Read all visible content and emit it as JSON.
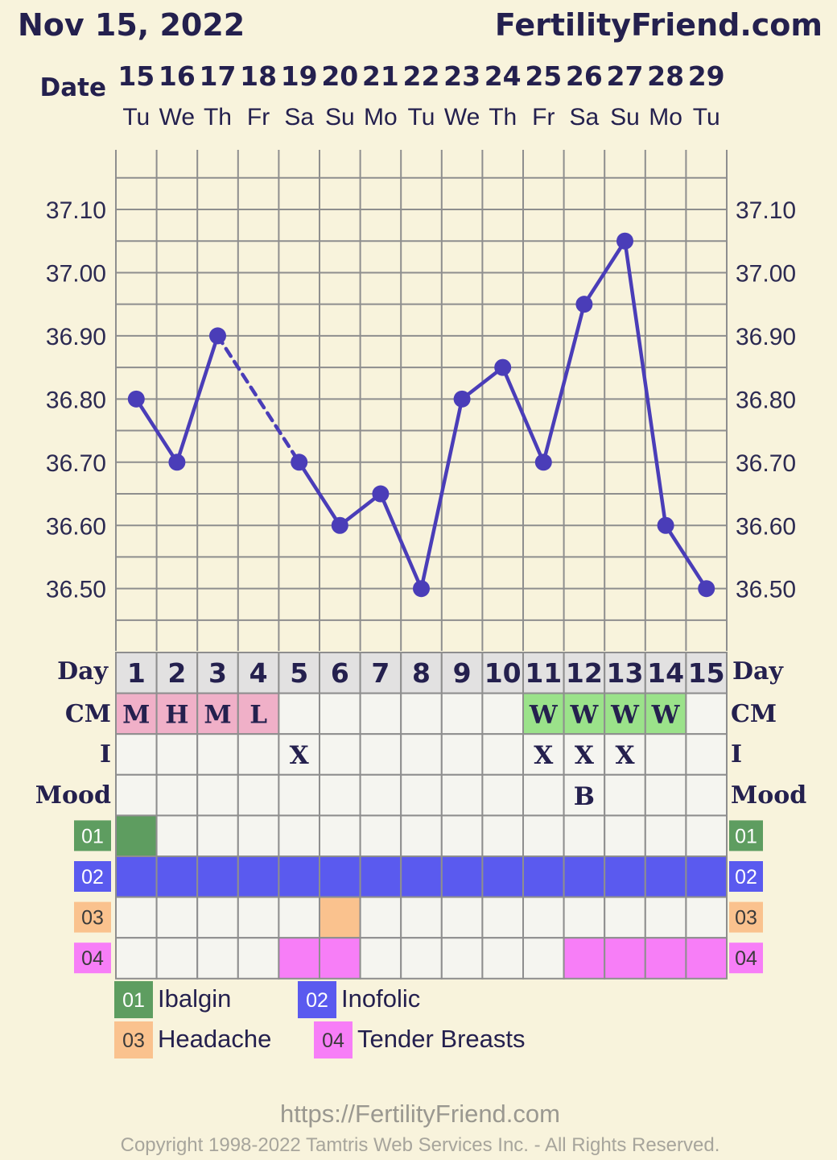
{
  "header": {
    "date": "Nov 15, 2022",
    "site": "FertilityFriend.com"
  },
  "labels": {
    "date": "Date",
    "day": "Day",
    "cm": "CM",
    "intercourse": "I",
    "mood": "Mood"
  },
  "colors": {
    "line": "#4a3db8",
    "grid": "#8e8e8e",
    "cm_pink": "#f0b0c8",
    "cm_green": "#9be28a",
    "med01": "#5e9d60",
    "med02": "#5a5aef",
    "med03": "#fac28e",
    "med04": "#f77ef7"
  },
  "chart_data": {
    "type": "line",
    "dates": [
      "15",
      "16",
      "17",
      "18",
      "19",
      "20",
      "21",
      "22",
      "23",
      "24",
      "25",
      "26",
      "27",
      "28",
      "29"
    ],
    "weekdays": [
      "Tu",
      "We",
      "Th",
      "Fr",
      "Sa",
      "Su",
      "Mo",
      "Tu",
      "We",
      "Th",
      "Fr",
      "Sa",
      "Su",
      "Mo",
      "Tu"
    ],
    "cycle_days": [
      "1",
      "2",
      "3",
      "4",
      "5",
      "6",
      "7",
      "8",
      "9",
      "10",
      "11",
      "12",
      "13",
      "14",
      "15"
    ],
    "temperatures": [
      36.8,
      36.7,
      36.9,
      null,
      36.7,
      36.6,
      36.65,
      36.5,
      36.8,
      36.85,
      36.7,
      36.95,
      37.05,
      36.6,
      36.5
    ],
    "y_ticks": [
      "37.10",
      "37.00",
      "36.90",
      "36.80",
      "36.70",
      "36.60",
      "36.50"
    ],
    "ylim": [
      36.4,
      37.2
    ],
    "grid": true
  },
  "rows": {
    "cm": [
      "M",
      "H",
      "M",
      "L",
      "",
      "",
      "",
      "",
      "",
      "",
      "W",
      "W",
      "W",
      "W",
      ""
    ],
    "intercourse": [
      "",
      "",
      "",
      "",
      "X",
      "",
      "",
      "",
      "",
      "",
      "X",
      "X",
      "X",
      "",
      ""
    ],
    "mood": [
      "",
      "",
      "",
      "",
      "",
      "",
      "",
      "",
      "",
      "",
      "",
      "B",
      "",
      "",
      ""
    ],
    "med01": [
      1,
      0,
      0,
      0,
      0,
      0,
      0,
      0,
      0,
      0,
      0,
      0,
      0,
      0,
      0
    ],
    "med02": [
      1,
      1,
      1,
      1,
      1,
      1,
      1,
      1,
      1,
      1,
      1,
      1,
      1,
      1,
      1
    ],
    "med03": [
      0,
      0,
      0,
      0,
      0,
      1,
      0,
      0,
      0,
      0,
      0,
      0,
      0,
      0,
      0
    ],
    "med04": [
      0,
      0,
      0,
      0,
      1,
      1,
      0,
      0,
      0,
      0,
      0,
      1,
      1,
      1,
      1
    ]
  },
  "legend": [
    {
      "code": "01",
      "label": "Ibalgin"
    },
    {
      "code": "02",
      "label": "Inofolic"
    },
    {
      "code": "03",
      "label": "Headache"
    },
    {
      "code": "04",
      "label": "Tender Breasts"
    }
  ],
  "footer": {
    "url": "https://FertilityFriend.com",
    "copyright": "Copyright 1998-2022 Tamtris Web Services Inc. - All Rights Reserved."
  }
}
